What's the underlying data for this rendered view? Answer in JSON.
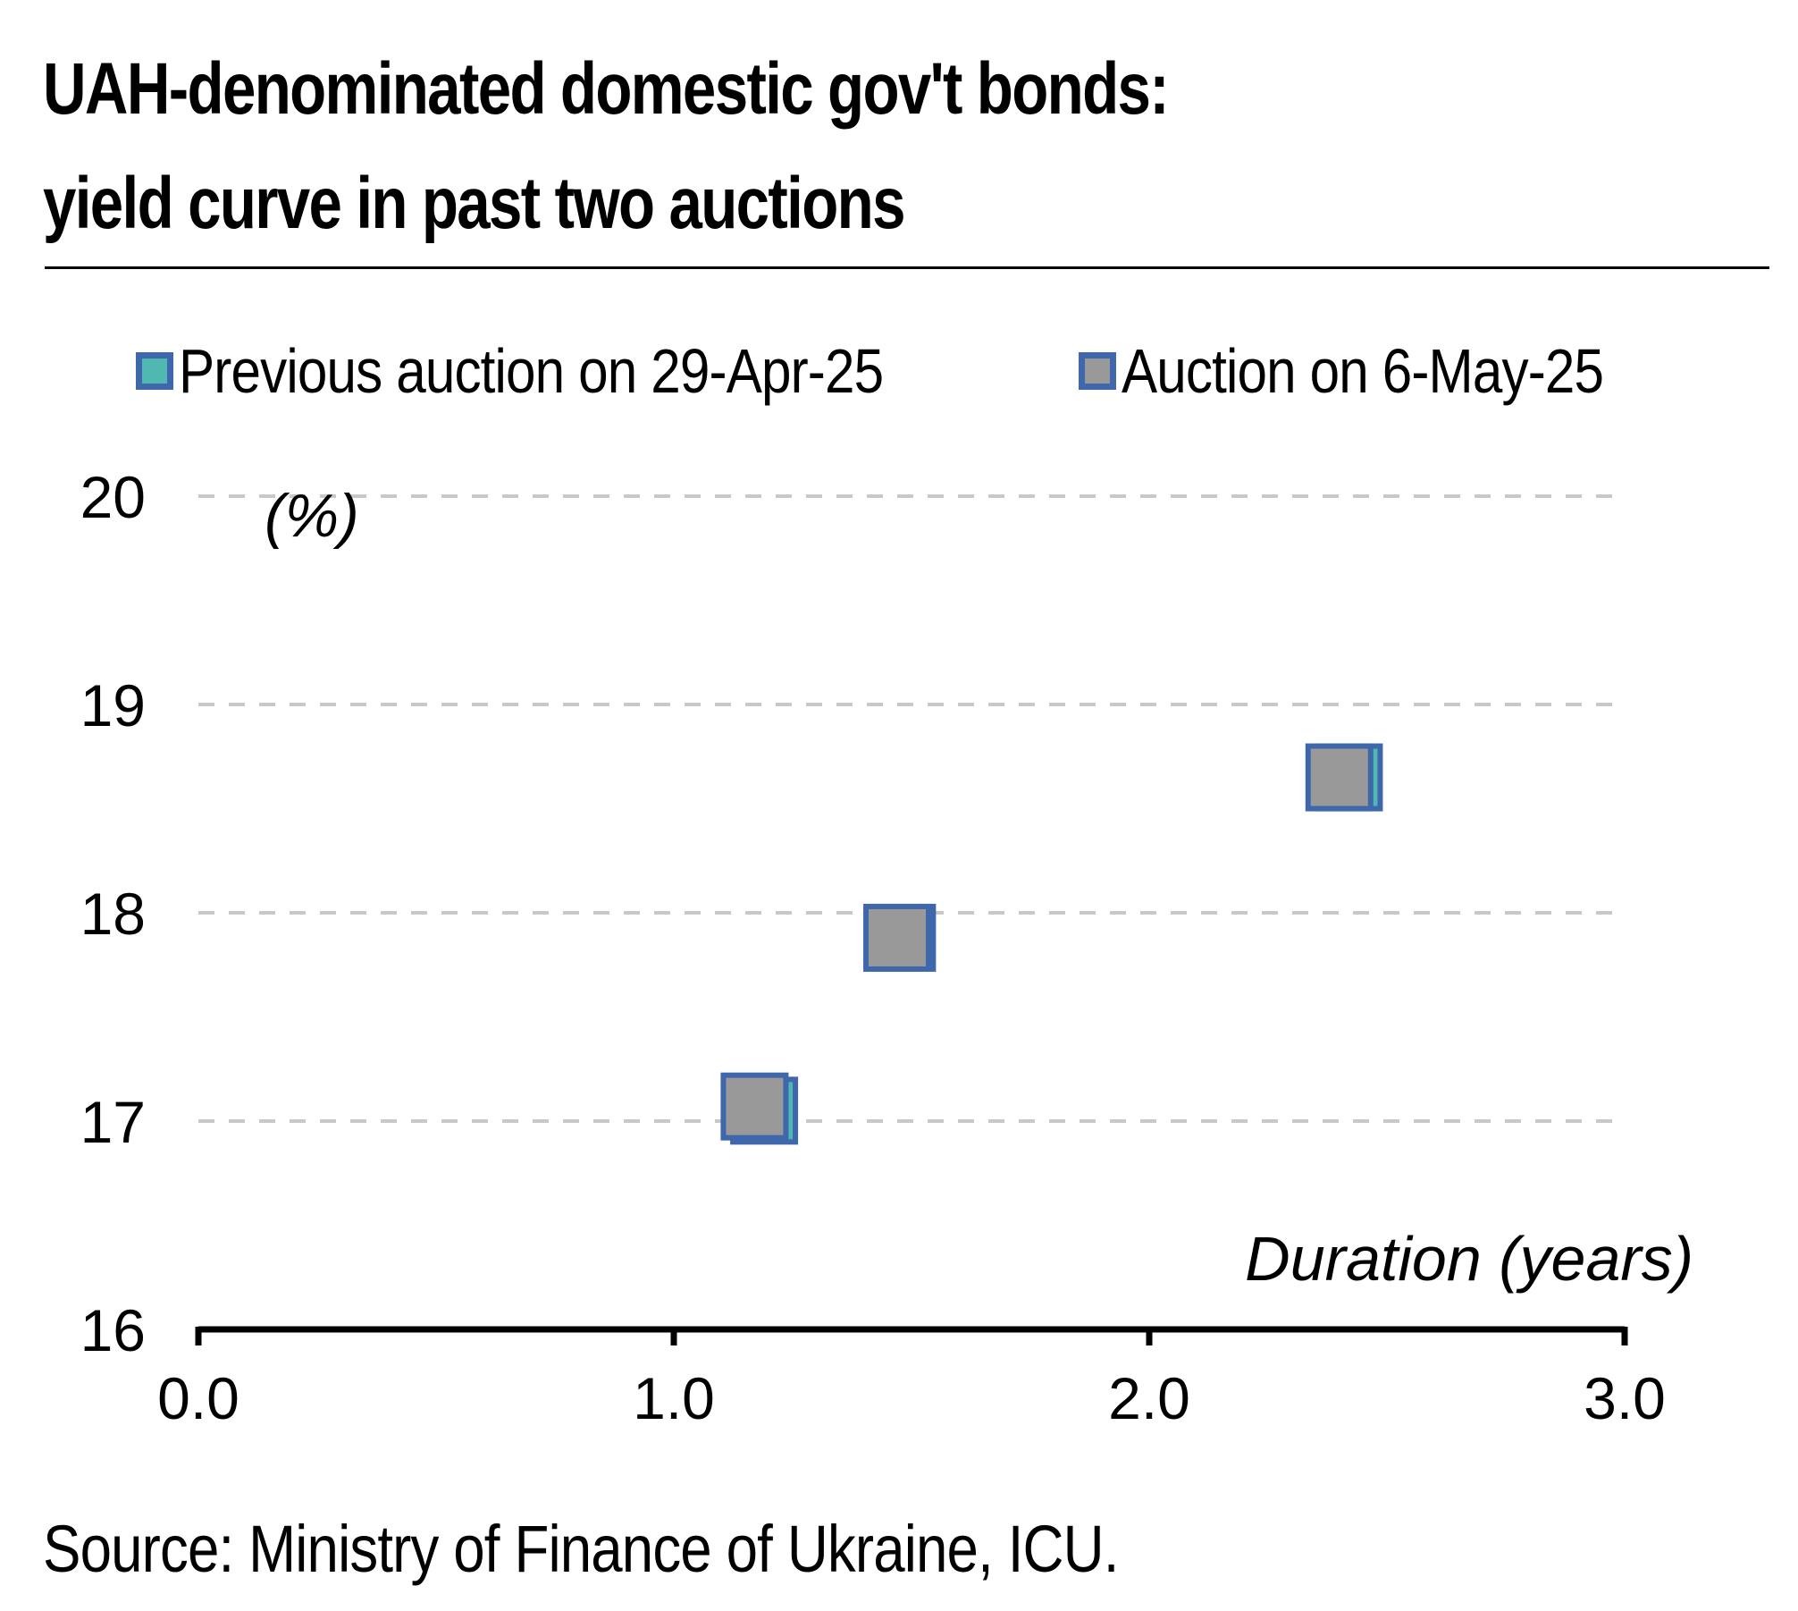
{
  "title_line1": "UAH-denominated domestic gov't bonds:",
  "title_line2": "yield curve in past two auctions",
  "source": "Source: Ministry of Finance of Ukraine, ICU.",
  "colors": {
    "previous_fill": "#4fb8b0",
    "current_fill": "#999999",
    "marker_border": "#3f68ac",
    "grid": "#c8c8c8",
    "axis": "#000000"
  },
  "chart_data": {
    "type": "scatter",
    "ylabel": "(%)",
    "xlabel": "Duration (years)",
    "xlim": [
      0.0,
      3.0
    ],
    "ylim": [
      16,
      20
    ],
    "x_ticks": [
      "0.0",
      "1.0",
      "2.0",
      "3.0"
    ],
    "y_ticks": [
      "16",
      "17",
      "18",
      "19",
      "20"
    ],
    "grid": "horizontal dashed",
    "legend": "top",
    "series": [
      {
        "name": "Previous auction on 29-Apr-25",
        "color": "#4fb8b0",
        "points": [
          {
            "x": 1.19,
            "y": 17.05
          },
          {
            "x": 1.48,
            "y": 17.88
          },
          {
            "x": 2.42,
            "y": 18.65
          }
        ]
      },
      {
        "name": "Auction on 6-May-25",
        "color": "#999999",
        "points": [
          {
            "x": 1.17,
            "y": 17.07
          },
          {
            "x": 1.47,
            "y": 17.88
          },
          {
            "x": 2.4,
            "y": 18.65
          }
        ]
      }
    ]
  }
}
